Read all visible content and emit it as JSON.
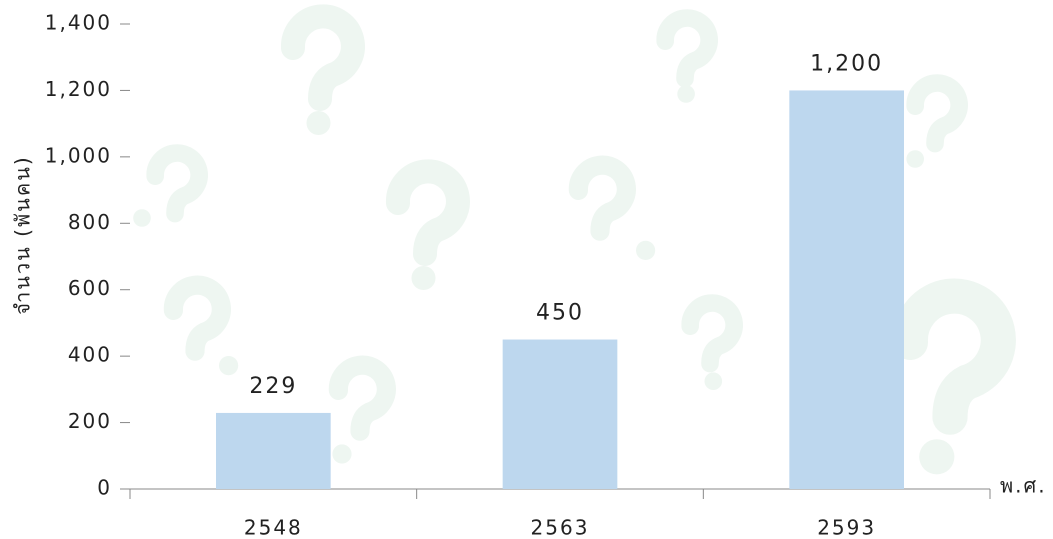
{
  "chart_data": {
    "type": "bar",
    "y_label": "จำนวน (พันคน)",
    "x_label": "พ.ศ.",
    "categories": [
      "2548",
      "2563",
      "2593"
    ],
    "values": [
      229,
      450,
      1200
    ],
    "value_labels": [
      "229",
      "450",
      "1,200"
    ],
    "color": "#bdd7ee",
    "ylim": [
      0,
      1400
    ],
    "yticks": [
      0,
      200,
      400,
      600,
      800,
      {
        "value": 1000,
        "label": "1,000"
      },
      {
        "value": 1200,
        "label": "1,200"
      },
      {
        "value": 1400,
        "label": "1,400"
      }
    ]
  }
}
